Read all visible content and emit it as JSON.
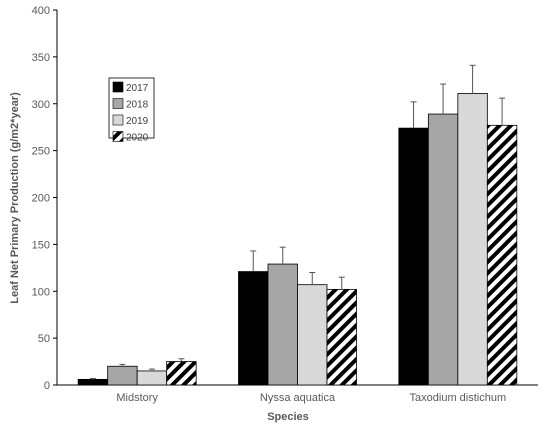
{
  "chart_data": {
    "type": "bar",
    "title": "",
    "xlabel": "Species",
    "ylabel": "Leaf  Net Primary Production (g/m2*year)",
    "categories": [
      "Midstory",
      "Nyssa aquatica",
      "Taxodium distichum"
    ],
    "ylim": [
      0,
      400
    ],
    "yticks": [
      0,
      50,
      100,
      150,
      200,
      250,
      300,
      350,
      400
    ],
    "grid": false,
    "legend_position": "upper-left",
    "series": [
      {
        "name": "2017",
        "values": [
          6,
          121,
          274
        ],
        "errors": [
          1,
          22,
          28
        ],
        "fill": "#000000",
        "pattern": "solid"
      },
      {
        "name": "2018",
        "values": [
          20,
          129,
          289
        ],
        "errors": [
          2,
          18,
          32
        ],
        "fill": "#a6a6a6",
        "pattern": "solid"
      },
      {
        "name": "2019",
        "values": [
          15,
          107,
          311
        ],
        "errors": [
          2,
          13,
          30
        ],
        "fill": "#d9d9d9",
        "pattern": "solid"
      },
      {
        "name": "2020",
        "values": [
          25,
          102,
          277
        ],
        "errors": [
          3,
          13,
          29
        ],
        "fill": "#ffffff",
        "pattern": "hatch"
      }
    ]
  }
}
